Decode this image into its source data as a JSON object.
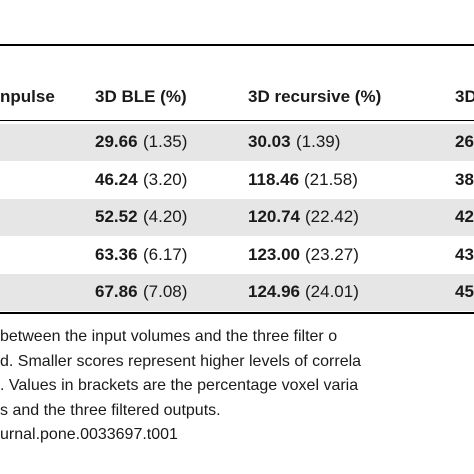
{
  "table": {
    "header": [
      "npulse",
      "3D BLE (%)",
      "3D recursive (%)",
      "3D"
    ],
    "rows": [
      [
        "29.66",
        "(1.35)",
        "30.03",
        "(1.39)",
        "26"
      ],
      [
        "46.24",
        "(3.20)",
        "118.46",
        "(21.58)",
        "38"
      ],
      [
        "52.52",
        "(4.20)",
        "120.74",
        "(22.42)",
        "42"
      ],
      [
        "63.36",
        "(6.17)",
        "123.00",
        "(23.27)",
        "43"
      ],
      [
        "67.86",
        "(7.08)",
        "124.96",
        "(24.01)",
        "45"
      ]
    ]
  },
  "caption": [
    "between the input volumes and the three filter o",
    "d. Smaller scores represent higher levels of correla",
    ". Values in brackets are the percentage voxel varia",
    "s and the three filtered outputs.",
    "urnal.pone.0033697.t001"
  ]
}
